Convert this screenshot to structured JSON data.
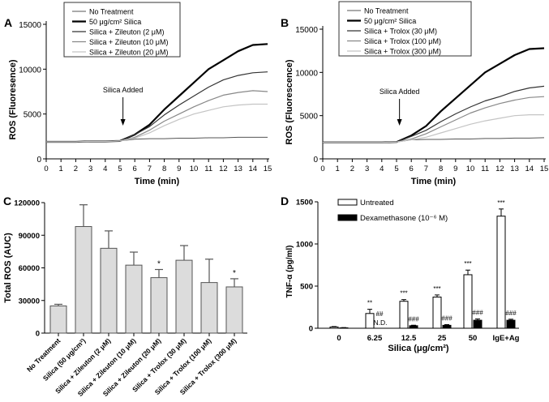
{
  "chart_data": [
    {
      "panel": "A",
      "type": "line",
      "xlabel": "Time (min)",
      "ylabel": "ROS (Fluoresence)",
      "xlim": [
        0,
        15
      ],
      "ylim": [
        0,
        15000
      ],
      "xticks": [
        0,
        1,
        2,
        3,
        4,
        5,
        6,
        7,
        8,
        9,
        10,
        11,
        12,
        13,
        14,
        15
      ],
      "yticks": [
        0,
        5000,
        10000,
        15000
      ],
      "annotation": {
        "text": "Silica Added",
        "x": 5.2
      },
      "legend_position": "top-left",
      "x": [
        0,
        1,
        2,
        3,
        4,
        5,
        6,
        7,
        8,
        9,
        10,
        11,
        12,
        13,
        14,
        15
      ],
      "series": [
        {
          "name": "No Treatment",
          "color": "#555555",
          "width": 1,
          "values": [
            1900,
            1900,
            1900,
            1950,
            1950,
            2000,
            2200,
            2250,
            2250,
            2300,
            2300,
            2350,
            2350,
            2400,
            2400,
            2400
          ]
        },
        {
          "name": "50 μg/cm² Silica",
          "color": "#000000",
          "width": 2.2,
          "values": [
            1900,
            1900,
            1900,
            1950,
            1950,
            2000,
            2700,
            3800,
            5500,
            7000,
            8500,
            10000,
            11000,
            12000,
            12700,
            12800
          ]
        },
        {
          "name": "Silica + Zileuton (2 μM)",
          "color": "#333333",
          "width": 1.2,
          "values": [
            1900,
            1900,
            1900,
            1950,
            1950,
            2000,
            2700,
            3600,
            4900,
            6000,
            7000,
            8000,
            8800,
            9300,
            9600,
            9700
          ]
        },
        {
          "name": "Silica + Zileuton (10 μM)",
          "color": "#888888",
          "width": 1.2,
          "values": [
            1900,
            1900,
            1900,
            1950,
            1950,
            2000,
            2400,
            3200,
            4200,
            5000,
            5800,
            6500,
            7100,
            7400,
            7600,
            7500
          ]
        },
        {
          "name": "Silica + Zileuton (20 μM)",
          "color": "#c4c4c4",
          "width": 1.2,
          "values": [
            1900,
            1900,
            1900,
            1950,
            1950,
            2000,
            2300,
            2900,
            3700,
            4400,
            5000,
            5400,
            5800,
            6000,
            6100,
            6100
          ]
        }
      ]
    },
    {
      "panel": "B",
      "type": "line",
      "xlabel": "Time (min)",
      "ylabel": "ROS (Fluorescence)",
      "xlim": [
        0,
        15
      ],
      "ylim": [
        0,
        15000
      ],
      "xticks": [
        0,
        1,
        2,
        3,
        4,
        5,
        6,
        7,
        8,
        9,
        10,
        11,
        12,
        13,
        14,
        15
      ],
      "yticks": [
        0,
        5000,
        10000,
        15000
      ],
      "annotation": {
        "text": "Silica Added",
        "x": 5.2
      },
      "legend_position": "top-left",
      "x": [
        0,
        1,
        2,
        3,
        4,
        5,
        6,
        7,
        8,
        9,
        10,
        11,
        12,
        13,
        14,
        15
      ],
      "series": [
        {
          "name": "No Treatment",
          "color": "#555555",
          "width": 1,
          "values": [
            1900,
            1900,
            1900,
            1900,
            1900,
            1950,
            2200,
            2250,
            2250,
            2300,
            2300,
            2350,
            2350,
            2400,
            2400,
            2450
          ]
        },
        {
          "name": "50 μg/cm² Silica",
          "color": "#000000",
          "width": 2.2,
          "values": [
            1900,
            1900,
            1900,
            1900,
            1900,
            1950,
            2700,
            3800,
            5500,
            7000,
            8500,
            10000,
            11000,
            12000,
            12700,
            12800
          ]
        },
        {
          "name": "Silica + Trolox (30 μM)",
          "color": "#333333",
          "width": 1.2,
          "values": [
            1900,
            1900,
            1900,
            1900,
            1900,
            1950,
            2600,
            3300,
            4300,
            5200,
            6000,
            6700,
            7200,
            7800,
            8200,
            8400
          ]
        },
        {
          "name": "Silica + Trolox (100 μM)",
          "color": "#888888",
          "width": 1.2,
          "values": [
            1900,
            1900,
            1900,
            1900,
            1900,
            1950,
            2300,
            2900,
            3700,
            4500,
            5300,
            5900,
            6400,
            6800,
            7100,
            7200
          ]
        },
        {
          "name": "Silica + Trolox (300 μM)",
          "color": "#c4c4c4",
          "width": 1.2,
          "values": [
            1900,
            1900,
            1900,
            1900,
            1900,
            1950,
            2200,
            2500,
            3000,
            3500,
            4000,
            4400,
            4700,
            5000,
            5100,
            5100
          ]
        }
      ]
    },
    {
      "panel": "C",
      "type": "bar",
      "ylabel": "Total ROS  (AUC)",
      "xlabel": "",
      "ylim": [
        0,
        120000
      ],
      "yticks": [
        0,
        30000,
        60000,
        90000,
        120000
      ],
      "categories": [
        "No Treatment",
        "Silica (50 μg/cm²)",
        "Silica + Zileuton (2 μM)",
        "Silica + Zileuton (10 μM)",
        "Silica + Zileuton (20 μM)",
        "Silica + Trolox (30 μM)",
        "Silica + Trolox (100 μM)",
        "Silica + Trolox (300 μM)"
      ],
      "values": [
        25000,
        98000,
        78000,
        62500,
        51000,
        67000,
        46500,
        42500
      ],
      "errors": [
        1500,
        20000,
        16000,
        12000,
        7500,
        13500,
        21500,
        7500
      ],
      "annotations": [
        "",
        "",
        "",
        "",
        "*",
        "",
        "",
        "*"
      ],
      "bar_color": "#dcdcdc"
    },
    {
      "panel": "D",
      "type": "bar",
      "ylabel": "TNF-α (pg/ml)",
      "xlabel": "Silica (μg/cm²)",
      "ylim": [
        0,
        1500
      ],
      "yticks": [
        0,
        500,
        1000,
        1500
      ],
      "categories": [
        "0",
        "6.25",
        "12.5",
        "25",
        "50",
        "IgE+Ag"
      ],
      "legend_position": "top-left",
      "series": [
        {
          "name": "Untreated",
          "color": "#ffffff",
          "values": [
            15,
            175,
            320,
            370,
            635,
            1330
          ],
          "errors": [
            5,
            50,
            20,
            25,
            55,
            85
          ],
          "annotations": [
            "",
            "**",
            "***",
            "***",
            "***",
            "***"
          ]
        },
        {
          "name": "Dexamethasone (10⁻⁶ M)",
          "color": "#000000",
          "values": [
            5,
            0,
            30,
            35,
            95,
            95
          ],
          "errors": [
            3,
            0,
            6,
            8,
            15,
            12
          ],
          "annotations": [
            "",
            "## N.D.",
            "###",
            "###",
            "###",
            "###"
          ]
        }
      ]
    }
  ]
}
